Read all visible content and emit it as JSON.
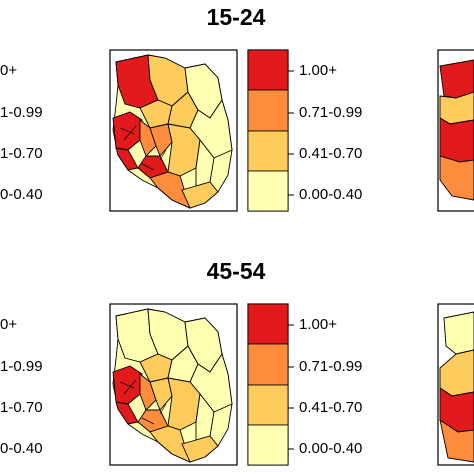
{
  "panels": [
    {
      "title": "15-24"
    },
    {
      "title": "45-54"
    }
  ],
  "legend": {
    "items": [
      {
        "label": "1.00+",
        "color": "#e31a1c"
      },
      {
        "label": "0.71-0.99",
        "color": "#fd8d3c"
      },
      {
        "label": "0.41-0.70",
        "color": "#fecc5c"
      },
      {
        "label": "0.00-0.40",
        "color": "#ffffb2"
      }
    ],
    "cutoff_labels": [
      "0+",
      "1-0.99",
      "1-0.70",
      "0-0.40"
    ]
  },
  "colors": {
    "border": "#000000",
    "high": "#e31a1c",
    "mid_high": "#fd8d3c",
    "mid_low": "#fecc5c",
    "low": "#ffffb2"
  }
}
